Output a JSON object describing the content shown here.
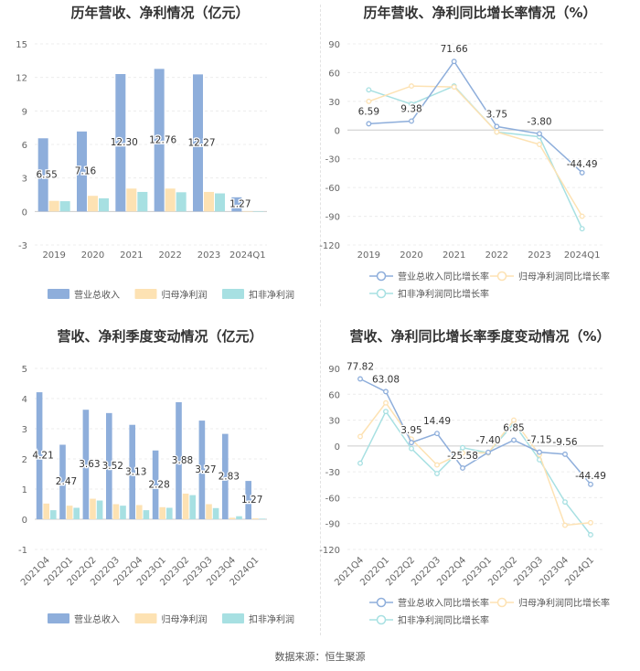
{
  "source": "数据来源：恒生聚源",
  "chart_data": [
    {
      "type": "bar",
      "title": "历年营收、净利情况（亿元）",
      "categories": [
        "2019",
        "2020",
        "2021",
        "2022",
        "2023",
        "2024Q1"
      ],
      "ylim": [
        -3,
        15
      ],
      "yticks": [
        "-3",
        "0",
        "3",
        "6",
        "9",
        "12",
        "15"
      ],
      "legend_position": "bottom",
      "series": [
        {
          "name": "营业总收入",
          "color": "#8eaedb",
          "values": [
            6.55,
            7.16,
            12.3,
            12.76,
            12.27,
            1.27
          ],
          "labels": [
            "6.55",
            "7.16",
            "12.30",
            "12.76",
            "12.27",
            "1.27"
          ]
        },
        {
          "name": "归母净利润",
          "color": "#fde2b3",
          "values": [
            0.95,
            1.4,
            2.05,
            2.05,
            1.75,
            0.03
          ]
        },
        {
          "name": "扣非净利润",
          "color": "#a7e0e2",
          "values": [
            0.92,
            1.18,
            1.75,
            1.72,
            1.62,
            0.02
          ]
        }
      ]
    },
    {
      "type": "line",
      "title": "历年营收、净利同比增长率情况（%）",
      "categories": [
        "2019",
        "2020",
        "2021",
        "2022",
        "2023",
        "2024Q1"
      ],
      "ylim": [
        -120,
        90
      ],
      "yticks": [
        "-120",
        "-90",
        "-60",
        "-30",
        "0",
        "30",
        "60",
        "90"
      ],
      "legend_position": "bottom",
      "series": [
        {
          "name": "营业总收入同比增长率",
          "color": "#8eaedb",
          "values": [
            6.59,
            9.38,
            71.66,
            3.75,
            -3.8,
            -44.49
          ],
          "labels": [
            "6.59",
            "9.38",
            "71.66",
            "3.75",
            "-3.80",
            "-44.49"
          ]
        },
        {
          "name": "归母净利润同比增长率",
          "color": "#fde2b3",
          "values": [
            30,
            46,
            45,
            -2,
            -15,
            -90
          ]
        },
        {
          "name": "扣非净利润同比增长率",
          "color": "#a7e0e2",
          "values": [
            42,
            27,
            46,
            -2,
            -7,
            -103
          ]
        }
      ]
    },
    {
      "type": "bar",
      "title": "营收、净利季度变动情况（亿元）",
      "categories": [
        "2021Q4",
        "2022Q1",
        "2022Q2",
        "2022Q3",
        "2022Q4",
        "2023Q1",
        "2023Q2",
        "2023Q3",
        "2023Q4",
        "2024Q1"
      ],
      "ylim": [
        -1,
        5
      ],
      "yticks": [
        "-1",
        "0",
        "1",
        "2",
        "3",
        "4",
        "5"
      ],
      "legend_position": "bottom",
      "series": [
        {
          "name": "营业总收入",
          "color": "#8eaedb",
          "values": [
            4.21,
            2.47,
            3.63,
            3.52,
            3.13,
            2.28,
            3.88,
            3.27,
            2.83,
            1.27
          ],
          "labels": [
            "4.21",
            "2.47",
            "3.63",
            "3.52",
            "3.13",
            "2.28",
            "3.88",
            "3.27",
            "2.83",
            "1.27"
          ]
        },
        {
          "name": "归母净利润",
          "color": "#fde2b3",
          "values": [
            0.52,
            0.45,
            0.68,
            0.5,
            0.47,
            0.4,
            0.85,
            0.5,
            0.05,
            0.03
          ]
        },
        {
          "name": "扣非净利润",
          "color": "#a7e0e2",
          "values": [
            0.3,
            0.38,
            0.62,
            0.45,
            0.3,
            0.38,
            0.8,
            0.37,
            0.1,
            0.02
          ]
        }
      ]
    },
    {
      "type": "line",
      "title": "营收、净利同比增长率季度变动情况（%）",
      "categories": [
        "2021Q4",
        "2022Q1",
        "2022Q2",
        "2022Q3",
        "2022Q4",
        "2023Q1",
        "2023Q2",
        "2023Q3",
        "2023Q4",
        "2024Q1"
      ],
      "ylim": [
        -120,
        90
      ],
      "yticks": [
        "-120",
        "-90",
        "-60",
        "-30",
        "0",
        "30",
        "60",
        "90"
      ],
      "legend_position": "bottom",
      "series": [
        {
          "name": "营业总收入同比增长率",
          "color": "#8eaedb",
          "values": [
            77.82,
            63.08,
            3.95,
            14.49,
            -25.58,
            -7.4,
            6.85,
            -7.15,
            -9.56,
            -44.49
          ],
          "labels": [
            "77.82",
            "63.08",
            "3.95",
            "14.49",
            "-25.58",
            "-7.40",
            "6.85",
            "-7.15",
            "-9.56",
            "-44.49"
          ]
        },
        {
          "name": "归母净利润同比增长率",
          "color": "#fde2b3",
          "values": [
            11,
            50,
            8,
            -22,
            -8,
            -8,
            30,
            -10,
            -92,
            -89
          ]
        },
        {
          "name": "扣非净利润同比增长率",
          "color": "#a7e0e2",
          "values": [
            -20,
            40,
            -3,
            -32,
            -2,
            -8,
            26,
            -16,
            -65,
            -103
          ]
        }
      ]
    }
  ]
}
